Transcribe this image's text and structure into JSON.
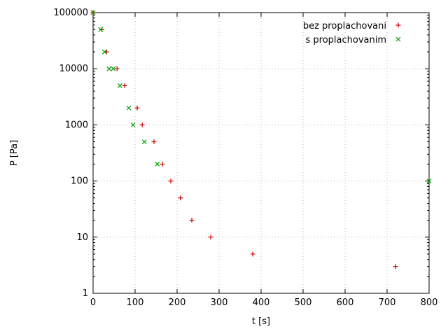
{
  "chart_data": {
    "type": "scatter",
    "title": "",
    "xlabel": "t [s]",
    "ylabel": "P [Pa]",
    "xlim": [
      0,
      800
    ],
    "ylim": [
      1,
      100000
    ],
    "x_scale": "linear",
    "y_scale": "log",
    "x_ticks": [
      0,
      100,
      200,
      300,
      400,
      500,
      600,
      700,
      800
    ],
    "y_ticks": [
      1,
      10,
      100,
      1000,
      10000,
      100000
    ],
    "grid": true,
    "grid_style": "dotted",
    "legend_position": "top-right",
    "series": [
      {
        "name": "bez proplachovani",
        "marker": "plus",
        "color": "#cc0000",
        "points": [
          [
            0,
            100000
          ],
          [
            21,
            50000
          ],
          [
            32,
            20000
          ],
          [
            57,
            10000
          ],
          [
            75,
            5000
          ],
          [
            105,
            2000
          ],
          [
            117,
            1000
          ],
          [
            145,
            500
          ],
          [
            165,
            200
          ],
          [
            185,
            100
          ],
          [
            208,
            50
          ],
          [
            235,
            20
          ],
          [
            280,
            10
          ],
          [
            380,
            5
          ],
          [
            720,
            3
          ]
        ]
      },
      {
        "name": "s proplachovanim",
        "marker": "cross",
        "color": "#00a000",
        "points": [
          [
            0,
            100000
          ],
          [
            18,
            50000
          ],
          [
            27,
            20000
          ],
          [
            38,
            10000
          ],
          [
            48,
            10000
          ],
          [
            64,
            5000
          ],
          [
            85,
            2000
          ],
          [
            95,
            1000
          ],
          [
            122,
            500
          ],
          [
            153,
            200
          ],
          [
            800,
            100
          ]
        ]
      }
    ]
  }
}
